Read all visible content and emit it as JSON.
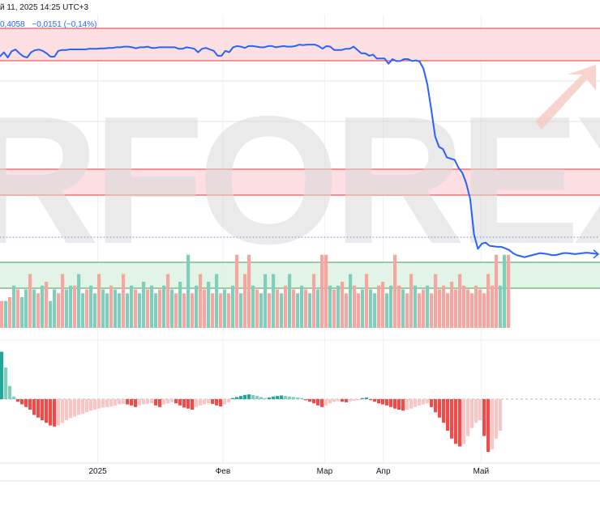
{
  "header": {
    "datetime": "й 11, 2025 14:25 UTC+3",
    "last_value": "0,4058",
    "change": "−0,0151 (−0,14%)"
  },
  "watermark": {
    "text": "RFOREX.co"
  },
  "colors": {
    "line": "#2962ff",
    "bull": "#7fcdbb",
    "bear": "#f4a6a0",
    "bear_strong": "#f04a4a",
    "bear_light": "#f9c6c6",
    "bull_dark": "#26a69a",
    "zone_red": "#fbd9dd",
    "zone_green": "#dff2e4",
    "zone_red_line": "#e53935",
    "zone_green_line": "#43a047",
    "grid": "#e6e6e6"
  },
  "chart_data": {
    "type": "line",
    "x_axis": {
      "ticks": [
        {
          "label": "2025",
          "at": 25
        },
        {
          "label": "Фев",
          "at": 57
        },
        {
          "label": "Мар",
          "at": 83
        },
        {
          "label": "Апр",
          "at": 98
        },
        {
          "label": "Май",
          "at": 123
        }
      ],
      "range": [
        0,
        153
      ]
    },
    "price_line": {
      "ylim": [
        0,
        100
      ],
      "values": [
        93.5,
        95.5,
        93.0,
        96.0,
        96.8,
        95.0,
        93.5,
        93.0,
        95.5,
        96.5,
        96.8,
        96.2,
        95.0,
        93.4,
        93.4,
        96.2,
        96.6,
        96.6,
        96.9,
        96.9,
        96.9,
        96.9,
        96.9,
        97.2,
        97.2,
        97.2,
        97.4,
        97.4,
        97.6,
        97.6,
        97.9,
        97.9,
        98.2,
        98.2,
        97.9,
        97.4,
        97.9,
        97.9,
        98.2,
        97.6,
        97.6,
        97.9,
        97.9,
        97.9,
        97.9,
        97.9,
        97.2,
        97.2,
        97.9,
        97.6,
        97.2,
        95.5,
        97.2,
        97.6,
        96.9,
        96.2,
        93.8,
        93.8,
        96.2,
        95.5,
        97.9,
        98.5,
        98.2,
        97.6,
        98.5,
        98.5,
        98.2,
        97.9,
        97.9,
        98.5,
        98.5,
        97.9,
        98.2,
        98.5,
        98.2,
        98.2,
        98.5,
        99.2,
        98.9,
        99.2,
        99.2,
        99.2,
        98.5,
        97.2,
        98.5,
        98.2,
        96.6,
        96.6,
        96.6,
        97.2,
        97.2,
        98.2,
        96.6,
        95.0,
        95.0,
        93.8,
        94.4,
        92.5,
        92.5,
        92.5,
        90.0,
        92.2,
        91.3,
        91.3,
        92.2,
        92.2,
        91.3,
        91.6,
        91.0,
        87.5,
        80.0,
        68.0,
        55.0,
        50.0,
        49.0,
        45.0,
        44.4,
        43.8,
        40.0,
        37.5,
        32.5,
        25.0,
        8.0,
        1.0,
        3.5,
        4.0,
        2.5,
        2.2,
        2.0,
        2.0,
        1.3,
        0.5,
        -1.0,
        -2.0,
        -2.5,
        -3.0,
        -2.5,
        -2.0,
        -1.5,
        -1.0,
        -1.3,
        -1.5,
        -2.0,
        -2.0,
        -1.5,
        -1.0,
        -1.0,
        -1.3,
        -1.5,
        -1.3,
        -1.0,
        -0.8,
        -1.0,
        -1.3,
        -1.5
      ]
    },
    "volume": {
      "bars": [
        [
          0.35,
          "d"
        ],
        [
          0.35,
          "u"
        ],
        [
          0.4,
          "d"
        ],
        [
          0.55,
          "u"
        ],
        [
          0.5,
          "d"
        ],
        [
          0.4,
          "u"
        ],
        [
          0.5,
          "u"
        ],
        [
          0.7,
          "d"
        ],
        [
          0.5,
          "u"
        ],
        [
          0.45,
          "d"
        ],
        [
          0.55,
          "u"
        ],
        [
          0.6,
          "d"
        ],
        [
          0.35,
          "u"
        ],
        [
          0.5,
          "u"
        ],
        [
          0.45,
          "d"
        ],
        [
          0.7,
          "d"
        ],
        [
          0.5,
          "u"
        ],
        [
          0.55,
          "u"
        ],
        [
          0.55,
          "d"
        ],
        [
          0.7,
          "u"
        ],
        [
          0.45,
          "u"
        ],
        [
          0.5,
          "d"
        ],
        [
          0.55,
          "u"
        ],
        [
          0.45,
          "u"
        ],
        [
          0.7,
          "d"
        ],
        [
          0.5,
          "u"
        ],
        [
          0.45,
          "u"
        ],
        [
          0.55,
          "d"
        ],
        [
          0.5,
          "u"
        ],
        [
          0.45,
          "u"
        ],
        [
          0.7,
          "d"
        ],
        [
          0.45,
          "u"
        ],
        [
          0.55,
          "u"
        ],
        [
          0.5,
          "d"
        ],
        [
          0.45,
          "u"
        ],
        [
          0.6,
          "u"
        ],
        [
          0.5,
          "d"
        ],
        [
          0.55,
          "u"
        ],
        [
          0.45,
          "u"
        ],
        [
          0.5,
          "d"
        ],
        [
          0.55,
          "u"
        ],
        [
          0.7,
          "d"
        ],
        [
          0.5,
          "u"
        ],
        [
          0.45,
          "d"
        ],
        [
          0.6,
          "u"
        ],
        [
          0.45,
          "d"
        ],
        [
          0.95,
          "u"
        ],
        [
          0.45,
          "d"
        ],
        [
          0.55,
          "u"
        ],
        [
          0.7,
          "d"
        ],
        [
          0.5,
          "d"
        ],
        [
          0.6,
          "u"
        ],
        [
          0.45,
          "d"
        ],
        [
          0.7,
          "u"
        ],
        [
          0.45,
          "d"
        ],
        [
          0.5,
          "u"
        ],
        [
          0.45,
          "d"
        ],
        [
          0.55,
          "u"
        ],
        [
          0.95,
          "d"
        ],
        [
          0.45,
          "u"
        ],
        [
          0.7,
          "d"
        ],
        [
          0.95,
          "d"
        ],
        [
          0.55,
          "u"
        ],
        [
          0.5,
          "d"
        ],
        [
          0.45,
          "u"
        ],
        [
          0.7,
          "u"
        ],
        [
          0.45,
          "d"
        ],
        [
          0.7,
          "u"
        ],
        [
          0.5,
          "d"
        ],
        [
          0.45,
          "u"
        ],
        [
          0.55,
          "d"
        ],
        [
          0.7,
          "u"
        ],
        [
          0.5,
          "d"
        ],
        [
          0.45,
          "u"
        ],
        [
          0.55,
          "u"
        ],
        [
          0.5,
          "d"
        ],
        [
          0.45,
          "u"
        ],
        [
          0.7,
          "d"
        ],
        [
          0.5,
          "u"
        ],
        [
          0.95,
          "d"
        ],
        [
          0.95,
          "d"
        ],
        [
          0.55,
          "u"
        ],
        [
          0.5,
          "d"
        ],
        [
          0.55,
          "u"
        ],
        [
          0.6,
          "d"
        ],
        [
          0.45,
          "d"
        ],
        [
          0.7,
          "u"
        ],
        [
          0.55,
          "d"
        ],
        [
          0.45,
          "d"
        ],
        [
          0.5,
          "u"
        ],
        [
          0.7,
          "d"
        ],
        [
          0.5,
          "u"
        ],
        [
          0.45,
          "u"
        ],
        [
          0.55,
          "d"
        ],
        [
          0.6,
          "d"
        ],
        [
          0.45,
          "u"
        ],
        [
          0.55,
          "u"
        ],
        [
          0.95,
          "d"
        ],
        [
          0.55,
          "d"
        ],
        [
          0.5,
          "u"
        ],
        [
          0.45,
          "d"
        ],
        [
          0.7,
          "d"
        ],
        [
          0.55,
          "u"
        ],
        [
          0.45,
          "d"
        ],
        [
          0.5,
          "d"
        ],
        [
          0.55,
          "u"
        ],
        [
          0.45,
          "d"
        ],
        [
          0.7,
          "d"
        ],
        [
          0.5,
          "d"
        ],
        [
          0.55,
          "d"
        ],
        [
          0.45,
          "d"
        ],
        [
          0.6,
          "d"
        ],
        [
          0.5,
          "d"
        ],
        [
          0.7,
          "d"
        ],
        [
          0.55,
          "d"
        ],
        [
          0.5,
          "d"
        ],
        [
          0.45,
          "d"
        ],
        [
          0.55,
          "d"
        ],
        [
          0.5,
          "d"
        ],
        [
          0.45,
          "d"
        ],
        [
          0.7,
          "d"
        ],
        [
          0.55,
          "d"
        ],
        [
          0.95,
          "d"
        ],
        [
          0.55,
          "u"
        ],
        [
          0.95,
          "u"
        ],
        [
          0.95,
          "d"
        ]
      ]
    },
    "histogram": {
      "values": [
        0.9,
        0.6,
        0.25,
        0.05,
        -0.05,
        -0.1,
        -0.15,
        -0.2,
        -0.3,
        -0.35,
        -0.4,
        -0.45,
        -0.5,
        -0.52,
        -0.5,
        -0.45,
        -0.4,
        -0.36,
        -0.33,
        -0.3,
        -0.28,
        -0.25,
        -0.22,
        -0.2,
        -0.18,
        -0.16,
        -0.15,
        -0.14,
        -0.12,
        -0.1,
        -0.09,
        -0.1,
        -0.12,
        -0.15,
        -0.12,
        -0.1,
        -0.09,
        -0.08,
        -0.12,
        -0.15,
        -0.1,
        -0.08,
        -0.06,
        -0.08,
        -0.12,
        -0.16,
        -0.18,
        -0.2,
        -0.15,
        -0.12,
        -0.1,
        -0.08,
        -0.09,
        -0.12,
        -0.14,
        -0.1,
        -0.06,
        0.02,
        0.04,
        0.06,
        0.08,
        0.09,
        0.08,
        0.06,
        0.04,
        0.02,
        0.03,
        0.05,
        0.06,
        0.07,
        0.06,
        0.05,
        0.04,
        0.03,
        0.02,
        -0.02,
        -0.05,
        -0.08,
        -0.12,
        -0.15,
        -0.12,
        -0.08,
        -0.05,
        -0.04,
        -0.05,
        -0.06,
        -0.04,
        -0.03,
        -0.02,
        0.02,
        0.03,
        -0.02,
        -0.05,
        -0.08,
        -0.1,
        -0.12,
        -0.15,
        -0.18,
        -0.2,
        -0.22,
        -0.2,
        -0.18,
        -0.15,
        -0.12,
        -0.1,
        -0.08,
        -0.15,
        -0.25,
        -0.35,
        -0.45,
        -0.6,
        -0.75,
        -0.85,
        -0.9,
        -0.85,
        -0.7,
        -0.55,
        -0.45,
        -0.4,
        -0.7,
        -1.0,
        -0.95,
        -0.75,
        -0.6
      ]
    }
  }
}
